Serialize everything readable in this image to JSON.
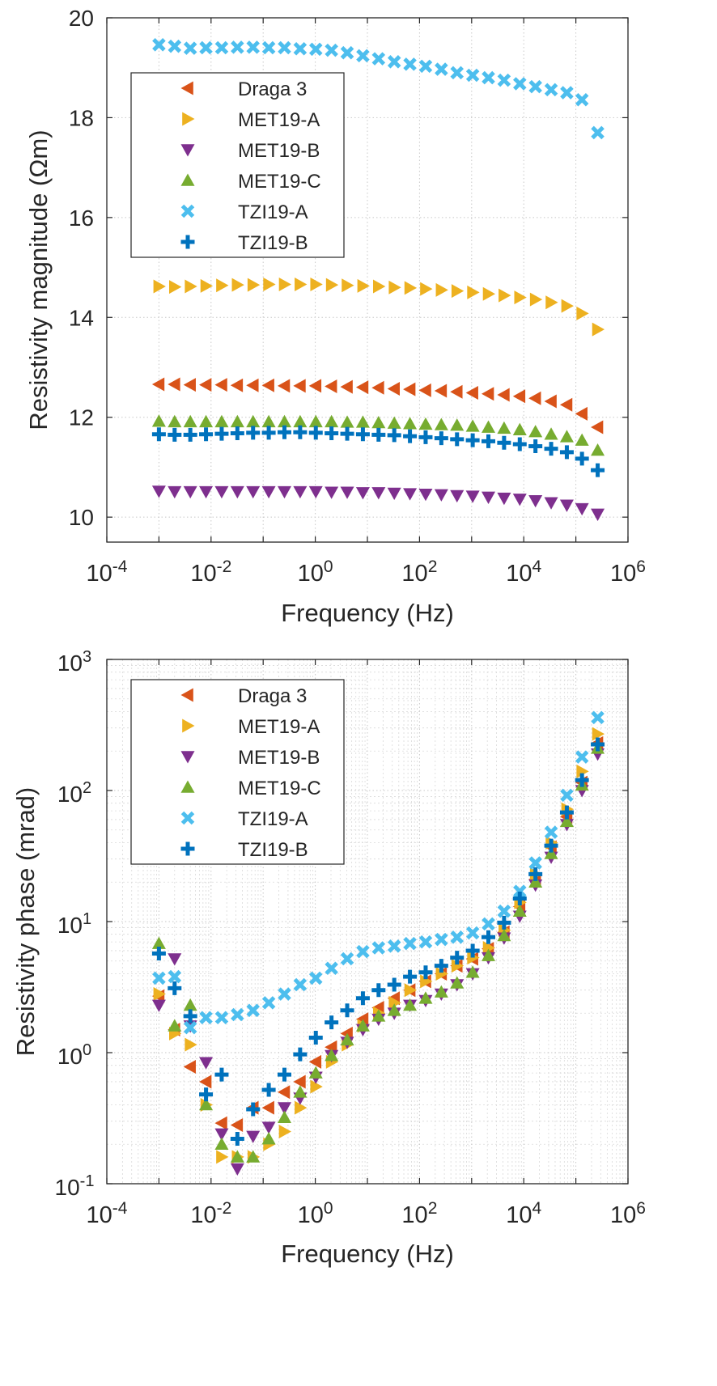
{
  "chart_data": [
    {
      "type": "scatter",
      "xlabel": "Frequency (Hz)",
      "ylabel": "Resistivity magnitude (Ωm)",
      "xscale": "log",
      "yscale": "linear",
      "xlim": [
        0.0001,
        1000000
      ],
      "ylim": [
        9.5,
        20
      ],
      "xticks": [
        {
          "value": 0.0001,
          "base": "10",
          "exp": "-4"
        },
        {
          "value": 0.01,
          "base": "10",
          "exp": "-2"
        },
        {
          "value": 1,
          "base": "10",
          "exp": "0"
        },
        {
          "value": 100,
          "base": "10",
          "exp": "2"
        },
        {
          "value": 10000,
          "base": "10",
          "exp": "4"
        },
        {
          "value": 1000000,
          "base": "10",
          "exp": "6"
        }
      ],
      "yticks": [
        {
          "value": 10,
          "label": "10"
        },
        {
          "value": 12,
          "label": "12"
        },
        {
          "value": 14,
          "label": "14"
        },
        {
          "value": 16,
          "label": "16"
        },
        {
          "value": 18,
          "label": "18"
        },
        {
          "value": 20,
          "label": "20"
        }
      ],
      "grid": "major",
      "legend_position": "top-left",
      "x": [
        0.001,
        0.002,
        0.004,
        0.008,
        0.016,
        0.032,
        0.064,
        0.128,
        0.256,
        0.512,
        1.024,
        2.048,
        4.096,
        8.192,
        16.384,
        32.768,
        65.536,
        131.072,
        262.144,
        524.288,
        1048.576,
        2097.152,
        4194.304,
        8388.608,
        16777.216,
        33554.432,
        67108.864,
        131072,
        262144
      ],
      "series": [
        {
          "name": "Draga 3",
          "marker": "triangle-left",
          "color": "#D95319",
          "values": [
            12.66,
            12.66,
            12.65,
            12.65,
            12.65,
            12.64,
            12.64,
            12.64,
            12.63,
            12.63,
            12.63,
            12.62,
            12.61,
            12.6,
            12.59,
            12.57,
            12.56,
            12.54,
            12.53,
            12.51,
            12.49,
            12.47,
            12.45,
            12.42,
            12.38,
            12.32,
            12.25,
            12.07,
            11.8
          ]
        },
        {
          "name": "MET19-A",
          "marker": "triangle-right",
          "color": "#EDB120",
          "values": [
            14.62,
            14.61,
            14.62,
            14.63,
            14.64,
            14.65,
            14.65,
            14.66,
            14.66,
            14.66,
            14.66,
            14.65,
            14.64,
            14.63,
            14.62,
            14.6,
            14.59,
            14.57,
            14.55,
            14.53,
            14.5,
            14.47,
            14.44,
            14.4,
            14.36,
            14.3,
            14.23,
            14.08,
            13.76
          ]
        },
        {
          "name": "MET19-B",
          "marker": "triangle-down",
          "color": "#7E2F8E",
          "values": [
            10.52,
            10.51,
            10.51,
            10.51,
            10.51,
            10.51,
            10.51,
            10.51,
            10.51,
            10.51,
            10.51,
            10.5,
            10.5,
            10.49,
            10.49,
            10.48,
            10.47,
            10.46,
            10.45,
            10.43,
            10.42,
            10.4,
            10.38,
            10.36,
            10.33,
            10.29,
            10.24,
            10.17,
            10.06
          ]
        },
        {
          "name": "MET19-C",
          "marker": "triangle-up",
          "color": "#77AC30",
          "values": [
            11.92,
            11.91,
            11.91,
            11.91,
            11.91,
            11.91,
            11.91,
            11.91,
            11.91,
            11.91,
            11.91,
            11.91,
            11.9,
            11.9,
            11.89,
            11.88,
            11.87,
            11.86,
            11.85,
            11.84,
            11.82,
            11.8,
            11.78,
            11.75,
            11.71,
            11.66,
            11.61,
            11.54,
            11.34
          ]
        },
        {
          "name": "TZI19-A",
          "marker": "x",
          "color": "#4DBEEE",
          "values": [
            19.46,
            19.43,
            19.39,
            19.4,
            19.4,
            19.41,
            19.41,
            19.4,
            19.4,
            19.38,
            19.37,
            19.35,
            19.3,
            19.24,
            19.18,
            19.12,
            19.07,
            19.03,
            18.97,
            18.9,
            18.85,
            18.8,
            18.75,
            18.68,
            18.62,
            18.56,
            18.5,
            18.36,
            17.7
          ]
        },
        {
          "name": "TZI19-B",
          "marker": "plus",
          "color": "#0072BD",
          "values": [
            11.66,
            11.65,
            11.65,
            11.66,
            11.67,
            11.68,
            11.69,
            11.69,
            11.7,
            11.7,
            11.69,
            11.68,
            11.67,
            11.66,
            11.65,
            11.64,
            11.62,
            11.6,
            11.58,
            11.56,
            11.54,
            11.52,
            11.49,
            11.46,
            11.42,
            11.37,
            11.3,
            11.17,
            10.94
          ]
        }
      ]
    },
    {
      "type": "scatter",
      "xlabel": "Frequency (Hz)",
      "ylabel": "Resistivity phase (mrad)",
      "xscale": "log",
      "yscale": "log",
      "xlim": [
        0.0001,
        1000000
      ],
      "ylim": [
        0.1,
        1000
      ],
      "xticks": [
        {
          "value": 0.0001,
          "base": "10",
          "exp": "-4"
        },
        {
          "value": 0.01,
          "base": "10",
          "exp": "-2"
        },
        {
          "value": 1,
          "base": "10",
          "exp": "0"
        },
        {
          "value": 100,
          "base": "10",
          "exp": "2"
        },
        {
          "value": 10000,
          "base": "10",
          "exp": "4"
        },
        {
          "value": 1000000,
          "base": "10",
          "exp": "6"
        }
      ],
      "yticks": [
        {
          "value": 0.1,
          "base": "10",
          "exp": "-1"
        },
        {
          "value": 1,
          "base": "10",
          "exp": "0"
        },
        {
          "value": 10,
          "base": "10",
          "exp": "1"
        },
        {
          "value": 100,
          "base": "10",
          "exp": "2"
        },
        {
          "value": 1000,
          "base": "10",
          "exp": "3"
        }
      ],
      "grid": "major+minor",
      "legend_position": "top-left",
      "x": [
        0.001,
        0.002,
        0.004,
        0.008,
        0.016,
        0.032,
        0.064,
        0.128,
        0.256,
        0.512,
        1.024,
        2.048,
        4.096,
        8.192,
        16.384,
        32.768,
        65.536,
        131.072,
        262.144,
        524.288,
        1048.576,
        2097.152,
        4194.304,
        8388.608,
        16777.216,
        33554.432,
        67108.864,
        131072,
        262144
      ],
      "series": [
        {
          "name": "Draga 3",
          "marker": "triangle-left",
          "color": "#D95319",
          "values": [
            2.7,
            1.5,
            0.78,
            0.6,
            0.29,
            0.28,
            0.38,
            0.38,
            0.5,
            0.6,
            0.85,
            1.1,
            1.4,
            1.8,
            2.2,
            2.6,
            3.0,
            3.5,
            4.0,
            4.6,
            5.2,
            6.2,
            8.3,
            13.0,
            21.0,
            37.0,
            63.0,
            115.0,
            230.0
          ]
        },
        {
          "name": "MET19-A",
          "marker": "triangle-right",
          "color": "#EDB120",
          "values": [
            2.8,
            1.4,
            1.15,
            0.4,
            0.16,
            0.16,
            0.16,
            0.2,
            0.25,
            0.38,
            0.55,
            0.85,
            1.15,
            1.6,
            2.0,
            2.4,
            3.0,
            3.5,
            4.0,
            4.6,
            5.3,
            6.3,
            8.6,
            14.0,
            23.0,
            40.0,
            72.0,
            140.0,
            270.0
          ]
        },
        {
          "name": "MET19-B",
          "marker": "triangle-down",
          "color": "#7E2F8E",
          "values": [
            2.3,
            5.2,
            1.6,
            0.84,
            0.24,
            0.13,
            0.23,
            0.27,
            0.38,
            0.45,
            0.65,
            0.95,
            1.2,
            1.5,
            1.8,
            2.0,
            2.3,
            2.5,
            2.8,
            3.3,
            4.0,
            5.3,
            7.5,
            11.0,
            19.0,
            31.0,
            55.0,
            100.0,
            190.0
          ]
        },
        {
          "name": "MET19-C",
          "marker": "triangle-up",
          "color": "#77AC30",
          "values": [
            6.8,
            1.6,
            2.3,
            0.4,
            0.2,
            0.16,
            0.16,
            0.22,
            0.32,
            0.5,
            0.7,
            0.95,
            1.25,
            1.6,
            1.9,
            2.1,
            2.3,
            2.6,
            2.9,
            3.4,
            4.1,
            5.5,
            7.8,
            12.0,
            20.0,
            33.0,
            58.0,
            110.0,
            210.0
          ]
        },
        {
          "name": "TZI19-A",
          "marker": "x",
          "color": "#4DBEEE",
          "values": [
            3.7,
            3.8,
            1.55,
            1.85,
            1.85,
            1.95,
            2.1,
            2.4,
            2.8,
            3.3,
            3.7,
            4.4,
            5.2,
            5.9,
            6.3,
            6.5,
            6.8,
            7.0,
            7.3,
            7.6,
            8.2,
            9.6,
            12.0,
            17.0,
            28.0,
            48.0,
            92.0,
            180.0,
            360.0
          ]
        },
        {
          "name": "TZI19-B",
          "marker": "plus",
          "color": "#0072BD",
          "values": [
            5.7,
            3.1,
            1.9,
            0.48,
            0.68,
            0.22,
            0.37,
            0.52,
            0.68,
            0.97,
            1.3,
            1.7,
            2.1,
            2.6,
            3.0,
            3.3,
            3.8,
            4.1,
            4.6,
            5.3,
            6.0,
            7.6,
            9.8,
            15.0,
            23.0,
            38.0,
            68.0,
            120.0,
            225.0
          ]
        }
      ]
    }
  ]
}
